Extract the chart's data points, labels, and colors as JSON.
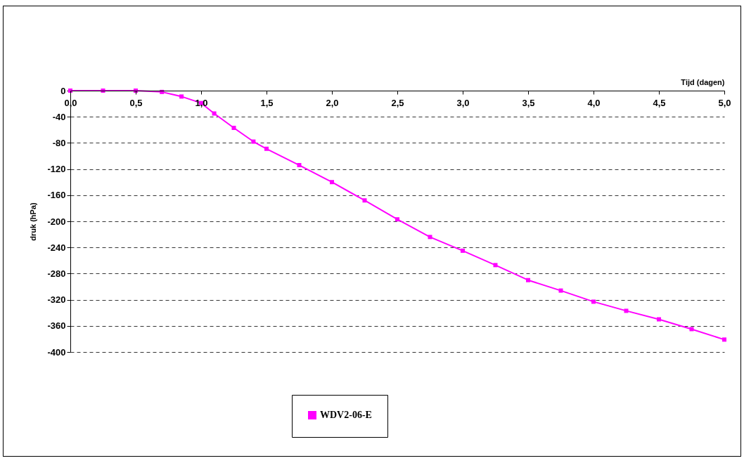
{
  "chart_data": {
    "type": "line",
    "xlabel": "Tijd (dagen)",
    "ylabel": "druk (hPa)",
    "x": [
      0,
      0.25,
      0.5,
      0.7,
      0.85,
      1.0,
      1.1,
      1.25,
      1.4,
      1.5,
      1.75,
      2.0,
      2.25,
      2.5,
      2.75,
      3.0,
      3.25,
      3.5,
      3.75,
      4.0,
      4.25,
      4.5,
      4.75,
      5.0
    ],
    "series": [
      {
        "name": "WDV2-06-E",
        "color": "#ff00ff",
        "values": [
          0,
          0,
          0,
          -2,
          -9,
          -19,
          -35,
          -57,
          -78,
          -89,
          -114,
          -140,
          -168,
          -197,
          -224,
          -245,
          -267,
          -290,
          -306,
          -323,
          -337,
          -350,
          -365,
          -381
        ]
      }
    ],
    "xlim": [
      0,
      5
    ],
    "xticks": [
      {
        "value": 0,
        "label": "0,0"
      },
      {
        "value": 0.5,
        "label": "0,5"
      },
      {
        "value": 1,
        "label": "1,0"
      },
      {
        "value": 1.5,
        "label": "1,5"
      },
      {
        "value": 2,
        "label": "2,0"
      },
      {
        "value": 2.5,
        "label": "2,5"
      },
      {
        "value": 3,
        "label": "3,0"
      },
      {
        "value": 3.5,
        "label": "3,5"
      },
      {
        "value": 4,
        "label": "4,0"
      },
      {
        "value": 4.5,
        "label": "4,5"
      },
      {
        "value": 5,
        "label": "5,0"
      }
    ],
    "ylim": [
      -400,
      0
    ],
    "yticks": [
      -400,
      -360,
      -320,
      -280,
      -240,
      -200,
      -160,
      -120,
      -80,
      -40,
      0
    ],
    "grid": "y",
    "legend": "bottom",
    "marker": "square",
    "line_style": "solid"
  }
}
